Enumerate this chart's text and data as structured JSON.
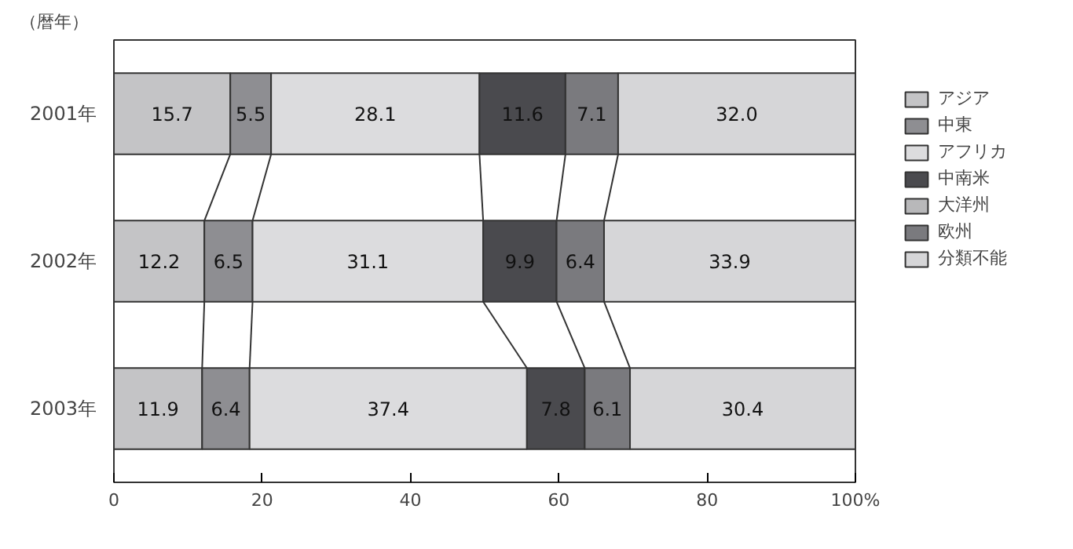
{
  "chart_data": {
    "type": "bar",
    "orientation": "horizontal",
    "stacked": true,
    "ylabel": "（暦年）",
    "categories": [
      "2001年",
      "2002年",
      "2003年"
    ],
    "series": [
      {
        "name": "アジア",
        "color": "#c4c4c6",
        "values": [
          15.7,
          12.2,
          11.9
        ],
        "value_labels": [
          "15.7",
          "12.2",
          "11.9"
        ]
      },
      {
        "name": "中東",
        "color": "#8e8e92",
        "values": [
          5.5,
          6.5,
          6.4
        ],
        "value_labels": [
          "5.5",
          "6.5",
          "6.4"
        ]
      },
      {
        "name": "アフリカ",
        "color": "#dcdcde",
        "values": [
          28.1,
          31.1,
          37.4
        ],
        "value_labels": [
          "28.1",
          "31.1",
          "37.4"
        ]
      },
      {
        "name": "中南米",
        "color": "#4a4a4e",
        "values": [
          11.6,
          9.9,
          7.8
        ],
        "value_labels": [
          "11.6",
          "9.9",
          "7.8"
        ]
      },
      {
        "name": "大洋州",
        "color": "#b8b8ba",
        "values": [
          0,
          0,
          0
        ],
        "value_labels": [
          null,
          null,
          null
        ]
      },
      {
        "name": "欧州",
        "color": "#7a7a7e",
        "values": [
          7.1,
          6.4,
          6.1
        ],
        "value_labels": [
          "7.1",
          "6.4",
          "6.1"
        ]
      },
      {
        "name": "分類不能",
        "color": "#d6d6d8",
        "values": [
          32.0,
          33.9,
          30.4
        ],
        "value_labels": [
          "32.0",
          "33.9",
          "30.4"
        ]
      }
    ],
    "xlim": [
      0,
      100
    ],
    "xticks": [
      0,
      20,
      40,
      60,
      80,
      {
        "value": 100,
        "label": "100%"
      }
    ],
    "grid": false,
    "legend": "right"
  }
}
